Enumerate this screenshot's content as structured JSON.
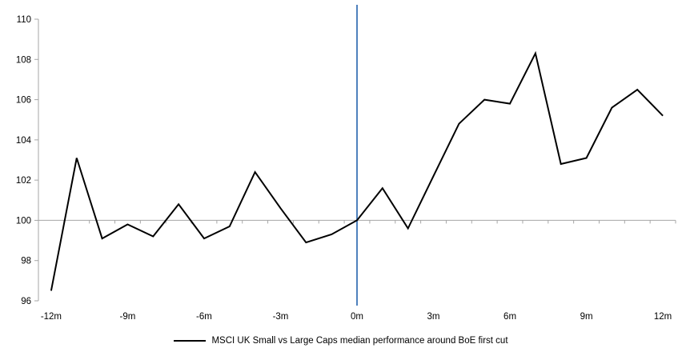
{
  "chart_data": {
    "type": "line",
    "x": [
      -12,
      -11,
      -10,
      -9,
      -8,
      -7,
      -6,
      -5,
      -4,
      -3,
      -2,
      -1,
      0,
      1,
      2,
      3,
      4,
      5,
      6,
      7,
      8,
      9,
      10,
      11,
      12
    ],
    "series": [
      {
        "name": "MSCI UK Small vs Large Caps median performance around BoE first cut",
        "color": "#000000",
        "values": [
          96.5,
          103.1,
          99.1,
          99.8,
          99.2,
          100.8,
          99.1,
          99.7,
          102.4,
          100.6,
          98.9,
          99.3,
          100.0,
          101.6,
          99.6,
          102.2,
          104.8,
          106.0,
          105.8,
          108.3,
          102.8,
          103.1,
          105.6,
          106.5,
          105.2
        ]
      }
    ],
    "title": "",
    "xlabel": "",
    "ylabel": "",
    "ylim": [
      96,
      110
    ],
    "y_ticks": [
      96,
      98,
      100,
      102,
      104,
      106,
      108,
      110
    ],
    "x_tick_labels": [
      "-12m",
      "-9m",
      "-6m",
      "-3m",
      "0m",
      "3m",
      "6m",
      "9m",
      "12m"
    ],
    "x_ticks_at": [
      -12,
      -9,
      -6,
      -3,
      0,
      3,
      6,
      9,
      12
    ],
    "baseline_value": 100,
    "event_line_x": 0,
    "grid": "off",
    "legend_position": "bottom",
    "colors": {
      "axis": "#a6a6a6",
      "baseline": "#a6a6a6",
      "event_line": "#4f81bd",
      "tick_text": "#000000",
      "series_line": "#000000"
    }
  }
}
